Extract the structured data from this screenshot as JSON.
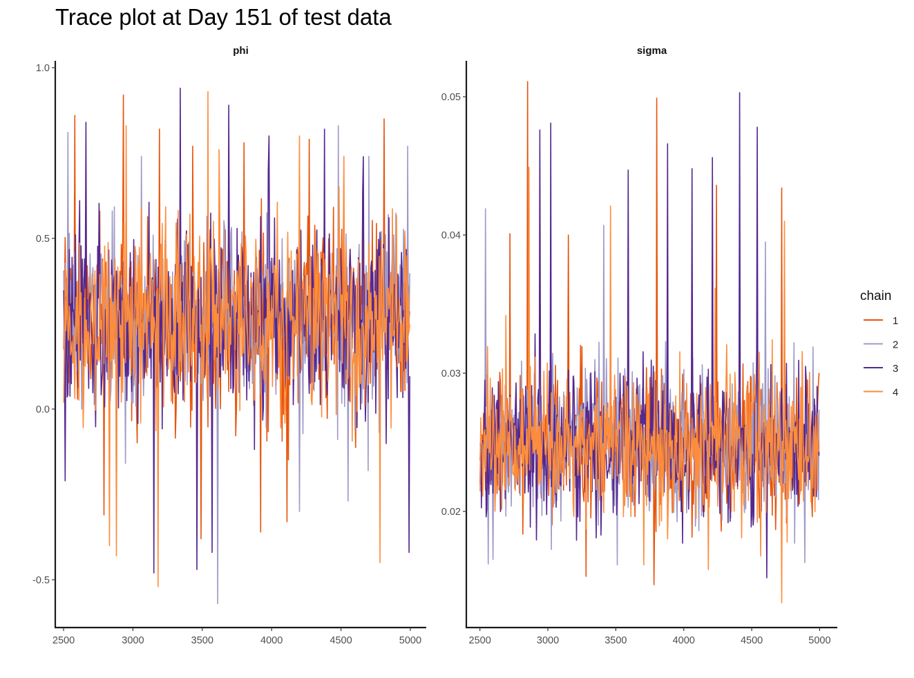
{
  "title": "Trace plot at Day 151 of test data",
  "legend": {
    "title": "chain",
    "placement": "right",
    "entries": [
      {
        "label": "1",
        "color": "#E6550D"
      },
      {
        "label": "2",
        "color": "#9E9AC8"
      },
      {
        "label": "3",
        "color": "#54278F"
      },
      {
        "label": "4",
        "color": "#FD8D3C"
      }
    ]
  },
  "chart_data": [
    {
      "type": "line",
      "title": "phi",
      "xlim": [
        2440,
        5115
      ],
      "ylim": [
        -0.64,
        1.02
      ],
      "x_ticks": [
        2500,
        3000,
        3500,
        4000,
        4500,
        5000
      ],
      "y_ticks": [
        1.0,
        0.5,
        0.0,
        -0.5
      ],
      "y_tick_labels": [
        "1.0",
        "0.5",
        "0.0",
        "-0.5"
      ],
      "grid": false,
      "series": [
        {
          "name": "1",
          "color": "#E6550D",
          "iterations": [
            2501,
            5000
          ],
          "center": 0.26,
          "spread": 0.13,
          "spikes": [
            [
              2580,
              0.86
            ],
            [
              2930,
              0.92
            ],
            [
              3190,
              0.82
            ],
            [
              3430,
              0.77
            ],
            [
              3800,
              0.78
            ],
            [
              4270,
              0.79
            ],
            [
              4810,
              0.85
            ],
            [
              3490,
              -0.38
            ],
            [
              3920,
              -0.36
            ],
            [
              4110,
              -0.33
            ],
            [
              2790,
              -0.31
            ]
          ]
        },
        {
          "name": "2",
          "color": "#9E9AC8",
          "iterations": [
            2501,
            5000
          ],
          "center": 0.26,
          "spread": 0.13,
          "spikes": [
            [
              2530,
              0.81
            ],
            [
              3060,
              0.74
            ],
            [
              4480,
              0.83
            ],
            [
              4980,
              0.77
            ],
            [
              4700,
              0.74
            ],
            [
              3610,
              -0.57
            ],
            [
              2880,
              -0.32
            ],
            [
              4200,
              -0.3
            ]
          ]
        },
        {
          "name": "3",
          "color": "#54278F",
          "iterations": [
            2501,
            5000
          ],
          "center": 0.26,
          "spread": 0.13,
          "spikes": [
            [
              2660,
              0.84
            ],
            [
              3340,
              0.94
            ],
            [
              3690,
              0.89
            ],
            [
              3980,
              0.8
            ],
            [
              4380,
              0.82
            ],
            [
              3150,
              -0.48
            ],
            [
              3460,
              -0.47
            ],
            [
              3570,
              -0.42
            ],
            [
              4990,
              -0.42
            ],
            [
              2510,
              -0.21
            ]
          ]
        },
        {
          "name": "4",
          "color": "#FD8D3C",
          "iterations": [
            2501,
            5000
          ],
          "center": 0.26,
          "spread": 0.13,
          "spikes": [
            [
              2950,
              0.83
            ],
            [
              3540,
              0.93
            ],
            [
              3620,
              0.76
            ],
            [
              4200,
              0.8
            ],
            [
              4520,
              0.74
            ],
            [
              3180,
              -0.52
            ],
            [
              2880,
              -0.43
            ],
            [
              4780,
              -0.45
            ],
            [
              2830,
              -0.4
            ]
          ]
        }
      ]
    },
    {
      "type": "line",
      "title": "sigma",
      "xlim": [
        2400,
        5130
      ],
      "ylim": [
        0.0116,
        0.0526
      ],
      "x_ticks": [
        2500,
        3000,
        3500,
        4000,
        4500,
        5000
      ],
      "y_ticks": [
        0.05,
        0.04,
        0.03,
        0.02
      ],
      "y_tick_labels": [
        "0.05",
        "0.04",
        "0.03",
        "0.02"
      ],
      "grid": false,
      "series": [
        {
          "name": "1",
          "color": "#E6550D",
          "iterations": [
            2501,
            5000
          ],
          "center": 0.0248,
          "spread": 0.0027,
          "spikes": [
            [
              2850,
              0.0511
            ],
            [
              3800,
              0.0499
            ],
            [
              4240,
              0.0436
            ],
            [
              4720,
              0.0434
            ],
            [
              3150,
              0.04
            ],
            [
              2720,
              0.0401
            ],
            [
              3780,
              0.0147
            ],
            [
              3280,
              0.0153
            ]
          ]
        },
        {
          "name": "2",
          "color": "#9E9AC8",
          "iterations": [
            2501,
            5000
          ],
          "center": 0.0248,
          "spread": 0.0027,
          "spikes": [
            [
              2540,
              0.0419
            ],
            [
              3410,
              0.0407
            ],
            [
              4600,
              0.0395
            ],
            [
              2560,
              0.0162
            ],
            [
              4890,
              0.0163
            ]
          ]
        },
        {
          "name": "3",
          "color": "#54278F",
          "iterations": [
            2501,
            5000
          ],
          "center": 0.0248,
          "spread": 0.0027,
          "spikes": [
            [
              4410,
              0.0503
            ],
            [
              3020,
              0.0481
            ],
            [
              2940,
              0.0476
            ],
            [
              3590,
              0.0447
            ],
            [
              4060,
              0.0448
            ],
            [
              4540,
              0.0478
            ],
            [
              4210,
              0.0456
            ],
            [
              3880,
              0.0466
            ],
            [
              4610,
              0.0152
            ]
          ]
        },
        {
          "name": "4",
          "color": "#FD8D3C",
          "iterations": [
            2501,
            5000
          ],
          "center": 0.0248,
          "spread": 0.0027,
          "spikes": [
            [
              2860,
              0.0449
            ],
            [
              3460,
              0.0421
            ],
            [
              4740,
              0.041
            ],
            [
              4720,
              0.0134
            ],
            [
              4180,
              0.0158
            ]
          ]
        }
      ]
    }
  ]
}
